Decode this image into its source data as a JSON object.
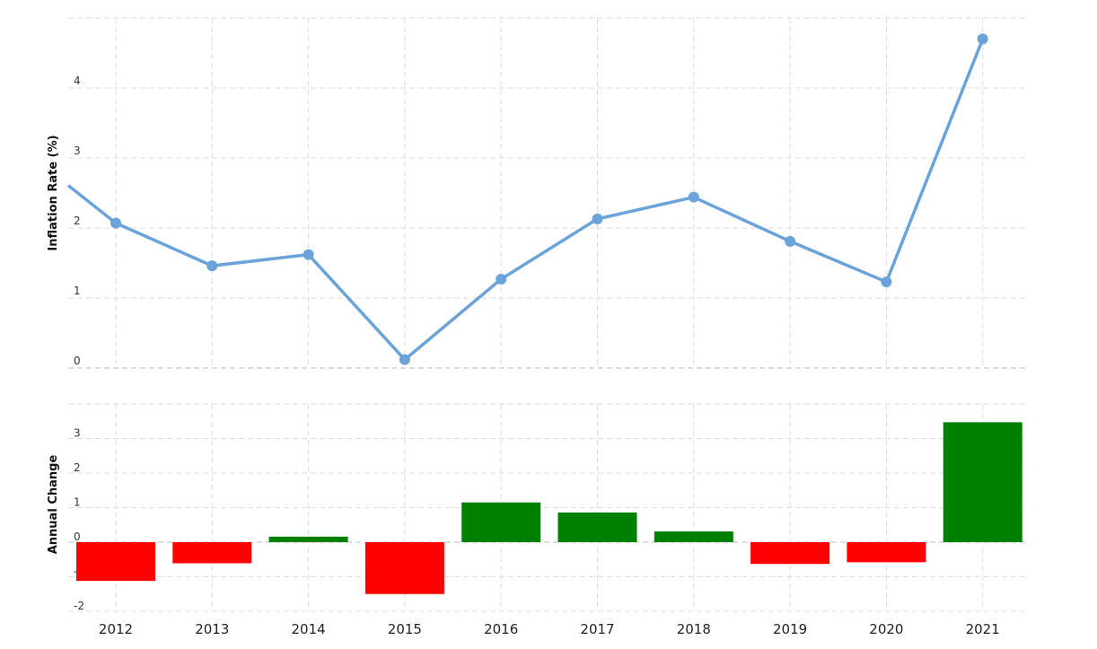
{
  "chart_data": [
    {
      "type": "line",
      "ylabel": "Inflation Rate (%)",
      "x": [
        2012,
        2013,
        2014,
        2015,
        2016,
        2017,
        2018,
        2019,
        2020,
        2021
      ],
      "values": [
        2.07,
        1.46,
        1.62,
        0.12,
        1.27,
        2.13,
        2.44,
        1.81,
        1.23,
        4.7
      ],
      "ylim": [
        0,
        5
      ],
      "yticks": [
        0,
        1,
        2,
        3,
        4
      ],
      "grid": true,
      "color": "#6aa3d9"
    },
    {
      "type": "bar",
      "ylabel": "Annual Change",
      "categories": [
        "2012",
        "2013",
        "2014",
        "2015",
        "2016",
        "2017",
        "2018",
        "2019",
        "2020",
        "2021"
      ],
      "values": [
        -1.12,
        -0.61,
        0.16,
        -1.5,
        1.15,
        0.86,
        0.31,
        -0.63,
        -0.58,
        3.47
      ],
      "ylim": [
        -2,
        4
      ],
      "yticks": [
        -2,
        -1,
        0,
        1,
        2,
        3
      ],
      "grid": true,
      "positive_color": "#008000",
      "negative_color": "#ff0000"
    }
  ]
}
